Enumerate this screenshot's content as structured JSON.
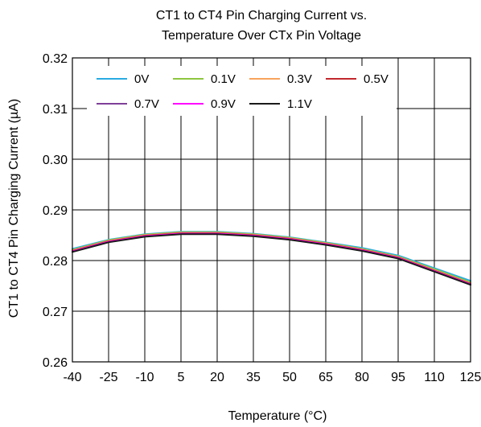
{
  "chart_data": {
    "type": "line",
    "title_lines": [
      "CT1 to CT4 Pin Charging Current vs.",
      "Temperature Over CTx Pin Voltage"
    ],
    "xlabel": "Temperature (°C)",
    "ylabel": "CT1 to CT4 Pin Charging Current (µA)",
    "xlim": [
      -40,
      125
    ],
    "ylim": [
      0.26,
      0.32
    ],
    "x_ticks": [
      -40,
      -25,
      -10,
      5,
      20,
      35,
      50,
      65,
      80,
      95,
      110,
      125
    ],
    "y_ticks": [
      0.26,
      0.27,
      0.28,
      0.29,
      0.3,
      0.31,
      0.32
    ],
    "y_tick_labels": [
      "0.26",
      "0.27",
      "0.28",
      "0.29",
      "0.30",
      "0.31",
      "0.32"
    ],
    "grid": true,
    "legend_position": "top-left",
    "x": [
      -40,
      -25,
      -10,
      5,
      20,
      35,
      50,
      65,
      80,
      95,
      110,
      125
    ],
    "series": [
      {
        "name": "0V",
        "color": "#29abe2",
        "values": [
          0.2823,
          0.2841,
          0.2852,
          0.2857,
          0.2857,
          0.2853,
          0.2846,
          0.2836,
          0.2825,
          0.281,
          0.2785,
          0.276
        ]
      },
      {
        "name": "0.1V",
        "color": "#8cc63f",
        "values": [
          0.2821,
          0.284,
          0.2851,
          0.2856,
          0.2856,
          0.2852,
          0.2845,
          0.2835,
          0.2823,
          0.2808,
          0.2783,
          0.2757
        ]
      },
      {
        "name": "0.3V",
        "color": "#f7a35c",
        "values": [
          0.282,
          0.2839,
          0.285,
          0.2855,
          0.2855,
          0.2851,
          0.2844,
          0.2834,
          0.2822,
          0.2807,
          0.2781,
          0.2755
        ]
      },
      {
        "name": "0.5V",
        "color": "#c1272d",
        "values": [
          0.2819,
          0.2838,
          0.2849,
          0.2854,
          0.2854,
          0.285,
          0.2843,
          0.2833,
          0.2821,
          0.2806,
          0.278,
          0.2754
        ]
      },
      {
        "name": "0.7V",
        "color": "#7f3f98",
        "values": [
          0.2818,
          0.2837,
          0.2848,
          0.2853,
          0.2853,
          0.2849,
          0.2842,
          0.2832,
          0.282,
          0.2805,
          0.2779,
          0.2753
        ]
      },
      {
        "name": "0.9V",
        "color": "#ff00ff",
        "values": [
          0.2818,
          0.2837,
          0.2848,
          0.2853,
          0.2853,
          0.2849,
          0.2842,
          0.2832,
          0.282,
          0.2805,
          0.2779,
          0.2753
        ]
      },
      {
        "name": "1.1V",
        "color": "#1a1a1a",
        "values": [
          0.2817,
          0.2836,
          0.2847,
          0.2852,
          0.2852,
          0.2848,
          0.2841,
          0.2831,
          0.2819,
          0.2804,
          0.2778,
          0.2752
        ]
      }
    ]
  }
}
